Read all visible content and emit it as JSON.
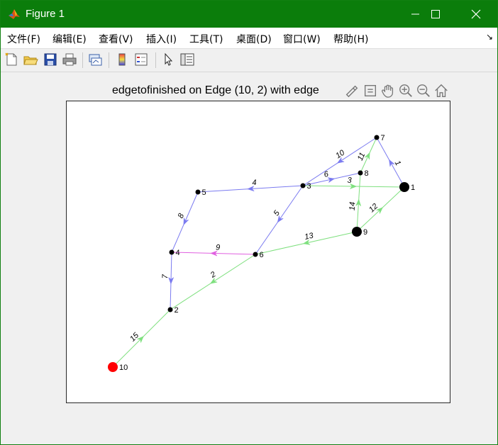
{
  "window": {
    "title": "Figure 1",
    "title_color": "#0b7d0b",
    "controls": [
      "minimize-icon",
      "maximize-icon",
      "close-icon"
    ]
  },
  "menu": {
    "items": [
      "文件(F)",
      "编辑(E)",
      "查看(V)",
      "插入(I)",
      "工具(T)",
      "桌面(D)",
      "窗口(W)",
      "帮助(H)"
    ]
  },
  "toolbar": {
    "icons": [
      "new-figure-icon",
      "open-file-icon",
      "save-icon",
      "print-icon",
      "link-plot-icon",
      "colorbar-icon",
      "legend-icon",
      "edit-plot-arrow-icon",
      "property-inspector-icon"
    ]
  },
  "axes": {
    "title": "edgetofinished on Edge (10, 2) with edge",
    "tools": [
      "brush-icon",
      "data-tips-icon",
      "pan-icon",
      "zoom-in-icon",
      "zoom-out-icon",
      "home-icon"
    ]
  },
  "graph": {
    "colors": {
      "blue": "#7b7bf0",
      "green": "#7fe07f",
      "magenta": "#e060e0",
      "node": "#000000",
      "highlight": "#ff0000"
    },
    "nodes": [
      {
        "id": "1",
        "size": "large"
      },
      {
        "id": "2",
        "size": "small"
      },
      {
        "id": "3",
        "size": "small"
      },
      {
        "id": "4",
        "size": "small"
      },
      {
        "id": "5",
        "size": "small"
      },
      {
        "id": "6",
        "size": "small"
      },
      {
        "id": "7",
        "size": "small"
      },
      {
        "id": "8",
        "size": "small"
      },
      {
        "id": "9",
        "size": "large"
      },
      {
        "id": "10",
        "size": "large",
        "color": "red"
      }
    ],
    "edges": [
      {
        "from": "1",
        "to": "7",
        "label": "1",
        "color": "blue"
      },
      {
        "from": "6",
        "to": "2",
        "label": "2",
        "color": "green"
      },
      {
        "from": "3",
        "to": "1",
        "label": "3",
        "color": "green"
      },
      {
        "from": "3",
        "to": "5",
        "label": "4",
        "color": "blue"
      },
      {
        "from": "3",
        "to": "6",
        "label": "5",
        "color": "blue"
      },
      {
        "from": "3",
        "to": "8",
        "label": "6",
        "color": "blue"
      },
      {
        "from": "4",
        "to": "2",
        "label": "7",
        "color": "blue"
      },
      {
        "from": "5",
        "to": "4",
        "label": "8",
        "color": "blue"
      },
      {
        "from": "6",
        "to": "4",
        "label": "9",
        "color": "magenta"
      },
      {
        "from": "7",
        "to": "3",
        "label": "10",
        "color": "blue"
      },
      {
        "from": "8",
        "to": "7",
        "label": "11",
        "color": "green"
      },
      {
        "from": "9",
        "to": "1",
        "label": "12",
        "color": "green"
      },
      {
        "from": "9",
        "to": "6",
        "label": "13",
        "color": "green"
      },
      {
        "from": "9",
        "to": "8",
        "label": "14",
        "color": "green"
      },
      {
        "from": "10",
        "to": "2",
        "label": "15",
        "color": "green"
      }
    ]
  }
}
